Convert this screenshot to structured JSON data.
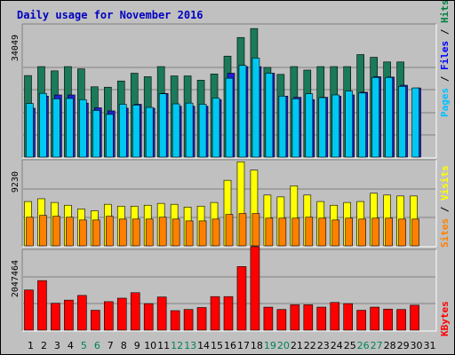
{
  "chart_data": [
    {
      "type": "bar",
      "title": "Daily usage for November 2016",
      "ytick_label": "34049",
      "ylim": [
        0,
        34049
      ],
      "legend": [
        {
          "label": "Pages",
          "color": "#00c0ff"
        },
        {
          "label": "Files",
          "color": "#0000ff"
        },
        {
          "label": "Hits",
          "color": "#008040"
        }
      ],
      "categories": [
        "1",
        "2",
        "3",
        "4",
        "5",
        "6",
        "7",
        "8",
        "9",
        "10",
        "11",
        "12",
        "13",
        "14",
        "15",
        "16",
        "17",
        "18",
        "19",
        "20",
        "21",
        "22",
        "23",
        "24",
        "25",
        "26",
        "27",
        "28",
        "29",
        "30",
        "31"
      ],
      "series": [
        {
          "name": "Hits",
          "color": "#1a7a5a",
          "values": [
            21000,
            23300,
            22200,
            23300,
            22700,
            18100,
            18000,
            19600,
            21600,
            20700,
            23300,
            20900,
            20900,
            19800,
            21400,
            26000,
            30800,
            33100,
            23100,
            21300,
            23300,
            22400,
            23300,
            23300,
            23300,
            26400,
            25700,
            24500,
            24500,
            null,
            null
          ]
        },
        {
          "name": "Files",
          "color": "#2020d0",
          "values": [
            12600,
            15700,
            16000,
            16000,
            13900,
            12700,
            11900,
            12600,
            13600,
            12600,
            16400,
            13100,
            13100,
            13100,
            14800,
            21600,
            23300,
            23300,
            21600,
            15700,
            15400,
            14800,
            15400,
            15700,
            16000,
            16700,
            20700,
            20600,
            18500,
            17800,
            null
          ]
        },
        {
          "name": "Pages",
          "color": "#00c8f0",
          "values": [
            13800,
            16400,
            15000,
            15100,
            14800,
            12000,
            11000,
            13600,
            13400,
            12800,
            16300,
            13700,
            13900,
            13600,
            15200,
            20300,
            23600,
            25500,
            21600,
            15700,
            15000,
            16300,
            15300,
            16000,
            17000,
            16500,
            20500,
            20500,
            18200,
            17800,
            null
          ]
        }
      ]
    },
    {
      "type": "bar",
      "ytick_label": "9230",
      "ylim": [
        0,
        9230
      ],
      "legend": [
        {
          "label": "Sites",
          "color": "#ff8000"
        },
        {
          "label": "Visits",
          "color": "#ffff00"
        }
      ],
      "categories": [
        "1",
        "2",
        "3",
        "4",
        "5",
        "6",
        "7",
        "8",
        "9",
        "10",
        "11",
        "12",
        "13",
        "14",
        "15",
        "16",
        "17",
        "18",
        "19",
        "20",
        "21",
        "22",
        "23",
        "24",
        "25",
        "26",
        "27",
        "28",
        "29",
        "30",
        "31"
      ],
      "series": [
        {
          "name": "Visits",
          "color": "#ffff00",
          "values": [
            4800,
            5100,
            4700,
            4400,
            4000,
            3800,
            4500,
            4300,
            4300,
            4400,
            4600,
            4500,
            4200,
            4300,
            4700,
            7100,
            9100,
            8200,
            5500,
            5300,
            6500,
            5500,
            4800,
            4400,
            4700,
            4800,
            5700,
            5500,
            5400,
            5400,
            null
          ]
        },
        {
          "name": "Sites",
          "color": "#ff8000",
          "values": [
            3100,
            3300,
            3200,
            3100,
            2800,
            2800,
            3200,
            2900,
            2900,
            2900,
            3100,
            2900,
            2700,
            2700,
            2900,
            3400,
            3500,
            3500,
            3000,
            3000,
            3000,
            3100,
            3000,
            2800,
            3000,
            2900,
            3000,
            3000,
            2900,
            2900,
            null
          ]
        }
      ]
    },
    {
      "type": "bar",
      "ytick_label": "2047464",
      "ylim": [
        0,
        2047464
      ],
      "legend": [
        {
          "label": "KBytes",
          "color": "#ff0000"
        }
      ],
      "categories": [
        "1",
        "2",
        "3",
        "4",
        "5",
        "6",
        "7",
        "8",
        "9",
        "10",
        "11",
        "12",
        "13",
        "14",
        "15",
        "16",
        "17",
        "18",
        "19",
        "20",
        "21",
        "22",
        "23",
        "24",
        "25",
        "26",
        "27",
        "28",
        "29",
        "30",
        "31"
      ],
      "series": [
        {
          "name": "KBytes",
          "color": "#ff0000",
          "values": [
            1030000,
            1270000,
            690000,
            770000,
            890000,
            510000,
            730000,
            820000,
            960000,
            680000,
            850000,
            500000,
            530000,
            580000,
            860000,
            860000,
            1630000,
            2140000,
            590000,
            530000,
            650000,
            650000,
            590000,
            710000,
            680000,
            510000,
            590000,
            540000,
            530000,
            640000,
            null
          ]
        }
      ],
      "weekend_days": [
        "5",
        "6",
        "12",
        "13",
        "19",
        "20",
        "26",
        "27"
      ],
      "weekday_color": "#000000",
      "weekend_color": "#00805a"
    }
  ]
}
